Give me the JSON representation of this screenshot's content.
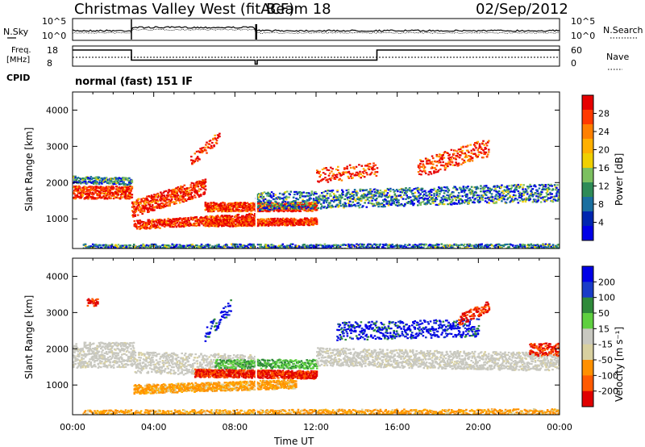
{
  "header": {
    "station": "Christmas Valley West (fitACF)",
    "beam": "Beam 18",
    "date": "02/Sep/2012"
  },
  "top_panels": {
    "nsky_label": "N.Sky",
    "nsky_ticks": [
      "10^5",
      "10^0"
    ],
    "nsearch_label": "N.Search",
    "nsearch_ticks": [
      "10^5",
      "10^0"
    ],
    "freq_label_1": "Freq.",
    "freq_label_2": "[MHz]",
    "freq_ticks": [
      "18",
      "8"
    ],
    "nave_label": "Nave",
    "nave_ticks": [
      "60",
      "0"
    ],
    "cpid_label": "CPID",
    "cpid_value": "normal (fast) 151 IF"
  },
  "chart_data": [
    {
      "type": "line",
      "title": "Operating frequency",
      "ylabel": "Freq. [MHz]",
      "x_unit": "hours UT",
      "x": [
        0,
        2.9,
        2.9,
        9.0,
        9.0,
        9.1,
        9.1,
        15.0,
        15.0,
        24.0
      ],
      "values": [
        16,
        16,
        11,
        11,
        9,
        9,
        11,
        11,
        16,
        16
      ],
      "ylim": [
        8,
        18
      ]
    },
    {
      "type": "heatmap",
      "quantity": "Power",
      "xlabel": "Time UT",
      "ylabel": "Slant Range [km]",
      "xlim": [
        0,
        24
      ],
      "ylim": [
        180,
        4500
      ],
      "x_ticks": [
        "00:00",
        "04:00",
        "08:00",
        "12:00",
        "16:00",
        "20:00",
        "00:00"
      ],
      "y_ticks": [
        "1000",
        "2000",
        "3000",
        "4000"
      ],
      "colorbar_label": "Power [dB]",
      "colorbar_ticks": [
        "28",
        "24",
        "20",
        "16",
        "12",
        "8",
        "4"
      ],
      "colorbar_colors": [
        "#e60000",
        "#ff3a00",
        "#ff8000",
        "#ffb000",
        "#f0d000",
        "#7cc060",
        "#2e8b57",
        "#1a6fa0",
        "#0026b0",
        "#0000e6"
      ]
    },
    {
      "type": "heatmap",
      "quantity": "Velocity",
      "xlabel": "Time UT",
      "ylabel": "Slant Range [km]",
      "xlim": [
        0,
        24
      ],
      "ylim": [
        180,
        4500
      ],
      "x_ticks": [
        "00:00",
        "04:00",
        "08:00",
        "12:00",
        "16:00",
        "20:00",
        "00:00"
      ],
      "y_ticks": [
        "1000",
        "2000",
        "3000",
        "4000"
      ],
      "colorbar_label": "Velocity [m s⁻¹]",
      "colorbar_ticks": [
        "200",
        "100",
        "50",
        "15",
        "-15",
        "-50",
        "-100",
        "-200"
      ],
      "colorbar_colors": [
        "#0000e6",
        "#1a3cc8",
        "#2f8a3a",
        "#5fd040",
        "#c8c8c0",
        "#d8d0a0",
        "#ff9000",
        "#ff5a00",
        "#e00000"
      ]
    }
  ],
  "axis": {
    "xlabel": "Time UT",
    "x_ticks": [
      "00:00",
      "04:00",
      "08:00",
      "12:00",
      "16:00",
      "20:00",
      "00:00"
    ],
    "ylabel": "Slant Range [km]",
    "y_ticks": [
      "1000",
      "2000",
      "3000",
      "4000"
    ],
    "power_label": "Power [dB]",
    "velocity_label": "Velocity [m s⁻¹]"
  }
}
